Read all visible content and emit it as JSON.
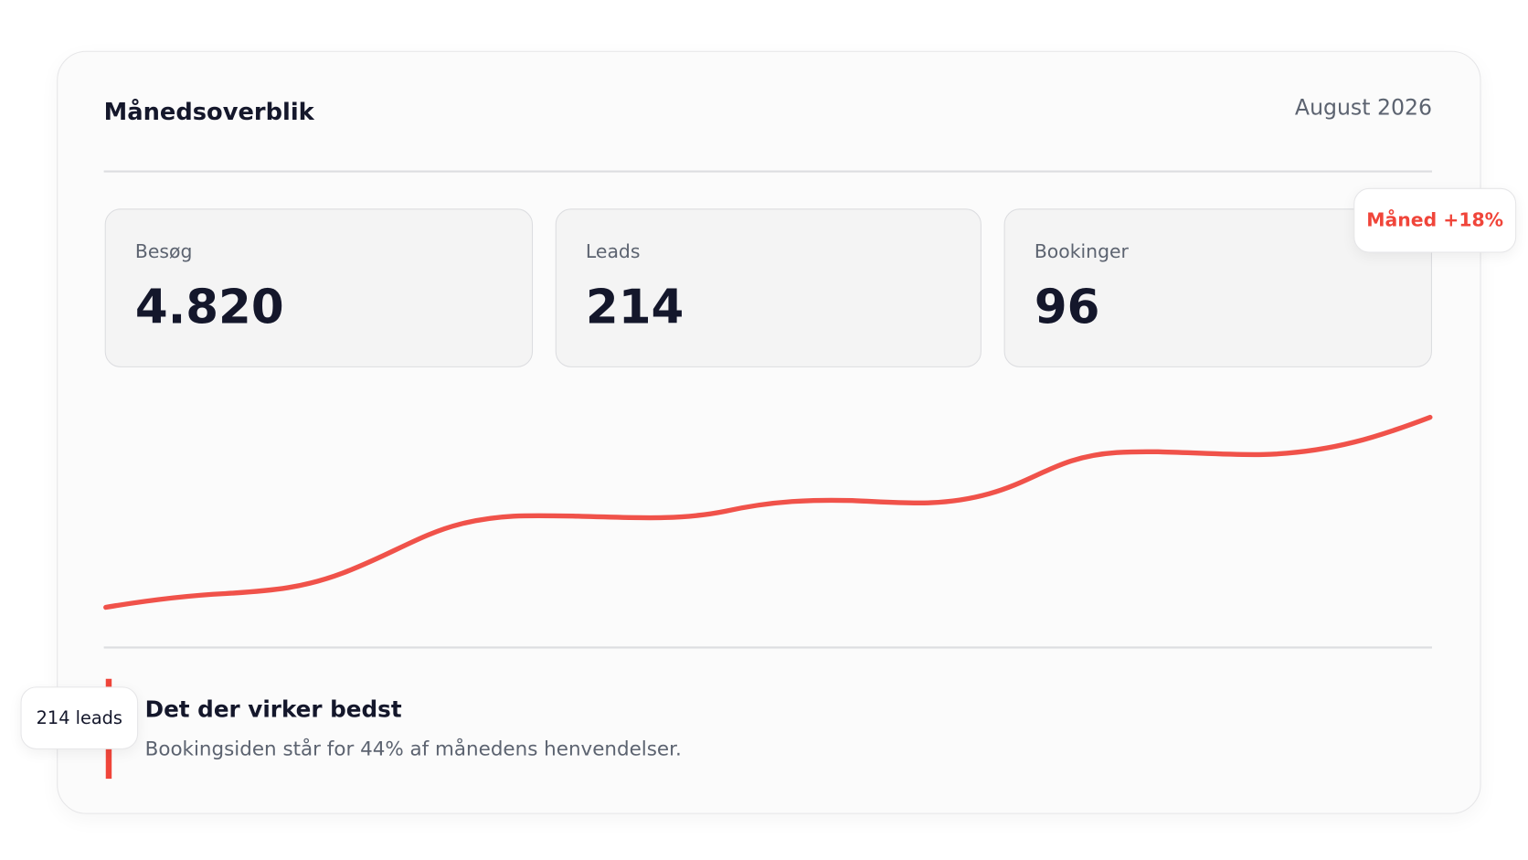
{
  "header": {
    "title": "Månedsoverblik",
    "date": "August 2026"
  },
  "metrics": [
    {
      "label": "Besøg",
      "value": "4.820"
    },
    {
      "label": "Leads",
      "value": "214"
    },
    {
      "label": "Bookinger",
      "value": "96"
    }
  ],
  "badge": "Måned +18%",
  "tag": "214 leads",
  "insight": {
    "title": "Det der virker bedst",
    "text": "Bookingsiden står for 44% af månedens henvendelser."
  }
}
